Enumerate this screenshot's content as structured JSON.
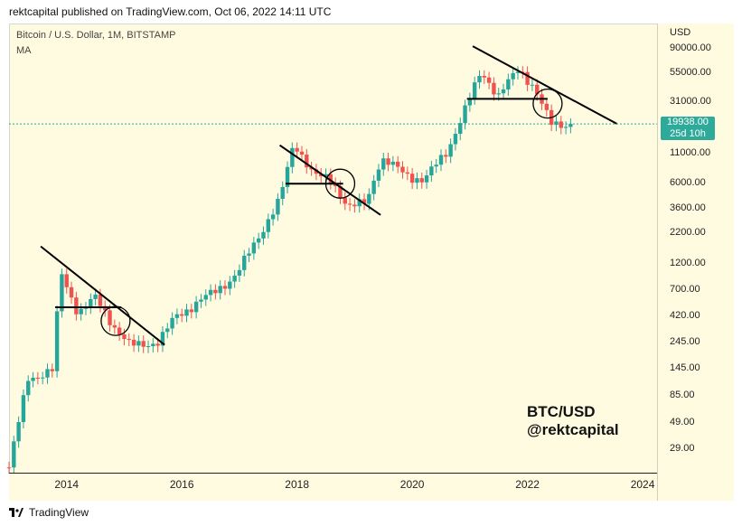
{
  "header": {
    "published_line": "rektcapital published on TradingView.com, Oct 06, 2022 14:11 UTC"
  },
  "chart_header": {
    "symbol": "Bitcoin / U.S. Dollar, 1M, BITSTAMP",
    "indicator": "MA"
  },
  "axis": {
    "currency": "USD"
  },
  "price_badge": {
    "price": "19938.00",
    "countdown": "25d 10h"
  },
  "watermark": {
    "line1": "BTC/USD",
    "line2": "@rektcapital"
  },
  "footer": {
    "brand": "TradingView"
  },
  "colors": {
    "up": "#26a69a",
    "down": "#ef5350",
    "background": "#fffbe0",
    "badge": "#2eaa9a"
  },
  "chart_data": {
    "type": "candlestick",
    "y_scale": "log",
    "y_ticks": [
      90000,
      55000,
      31000,
      11000,
      6000,
      3600,
      2200,
      1200,
      700,
      420,
      245,
      145,
      85,
      49,
      29
    ],
    "y_tick_labels": [
      "90000.00",
      "55000.00",
      "31000.00",
      "11000.00",
      "6000.00",
      "3600.00",
      "2200.00",
      "1200.00",
      "700.00",
      "420.00",
      "245.00",
      "145.00",
      "85.00",
      "49.00",
      "29.00"
    ],
    "x_ticks": [
      "2014",
      "2016",
      "2018",
      "2020",
      "2022",
      "2024"
    ],
    "x_range": [
      2013.0,
      2024.25
    ],
    "last_price": 19938,
    "candles_yearly_anchor_closes": [
      {
        "t": 2013.0,
        "v": 20
      },
      {
        "t": 2013.33,
        "v": 120
      },
      {
        "t": 2013.75,
        "v": 140
      },
      {
        "t": 2013.9,
        "v": 1000
      },
      {
        "t": 2014.2,
        "v": 450
      },
      {
        "t": 2014.5,
        "v": 600
      },
      {
        "t": 2014.85,
        "v": 330
      },
      {
        "t": 2015.1,
        "v": 230
      },
      {
        "t": 2015.6,
        "v": 250
      },
      {
        "t": 2015.9,
        "v": 420
      },
      {
        "t": 2016.5,
        "v": 650
      },
      {
        "t": 2016.95,
        "v": 960
      },
      {
        "t": 2017.4,
        "v": 2400
      },
      {
        "t": 2017.7,
        "v": 4300
      },
      {
        "t": 2017.95,
        "v": 14000
      },
      {
        "t": 2018.3,
        "v": 7000
      },
      {
        "t": 2018.6,
        "v": 6500
      },
      {
        "t": 2018.9,
        "v": 3700
      },
      {
        "t": 2019.2,
        "v": 4100
      },
      {
        "t": 2019.45,
        "v": 10000
      },
      {
        "t": 2019.9,
        "v": 7200
      },
      {
        "t": 2020.2,
        "v": 6400
      },
      {
        "t": 2020.6,
        "v": 11500
      },
      {
        "t": 2020.95,
        "v": 29000
      },
      {
        "t": 2021.2,
        "v": 58000
      },
      {
        "t": 2021.5,
        "v": 35000
      },
      {
        "t": 2021.85,
        "v": 61000
      },
      {
        "t": 2022.1,
        "v": 43000
      },
      {
        "t": 2022.4,
        "v": 20000
      },
      {
        "t": 2022.75,
        "v": 19938
      }
    ],
    "annotations": [
      {
        "type": "descending-trendline",
        "from": [
          2013.55,
          1700
        ],
        "to": [
          2015.7,
          235
        ]
      },
      {
        "type": "descending-trendline",
        "from": [
          2017.7,
          13000
        ],
        "to": [
          2019.45,
          3200
        ]
      },
      {
        "type": "descending-trendline",
        "from": [
          2021.05,
          95000
        ],
        "to": [
          2023.55,
          20000
        ]
      },
      {
        "type": "horizontal-level",
        "from": [
          2013.8,
          500
        ],
        "to": [
          2014.95,
          500
        ]
      },
      {
        "type": "horizontal-level",
        "from": [
          2017.8,
          6000
        ],
        "to": [
          2018.8,
          6000
        ]
      },
      {
        "type": "horizontal-level",
        "from": [
          2020.95,
          33000
        ],
        "to": [
          2022.35,
          33000
        ]
      }
    ]
  }
}
